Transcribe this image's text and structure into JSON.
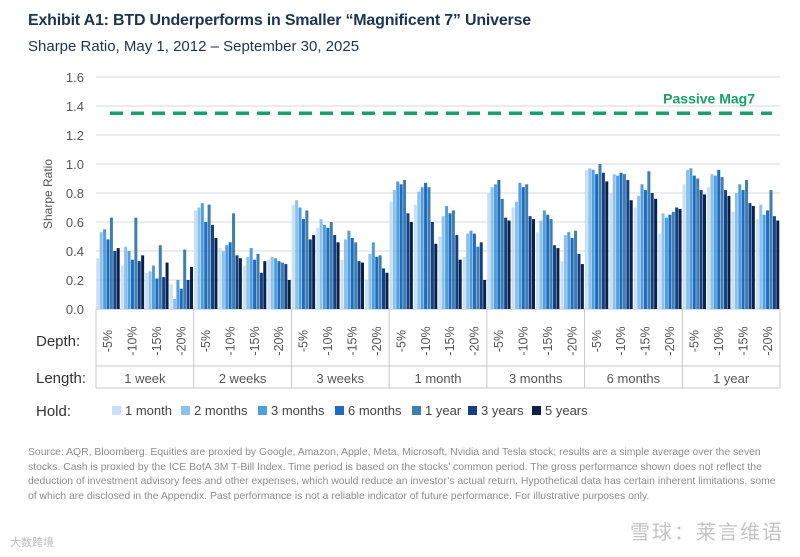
{
  "header": {
    "title": "Exhibit A1: BTD Underperforms in Smaller “Magnificent 7” Universe",
    "subtitle": "Sharpe Ratio, May 1, 2012 – September 30, 2025"
  },
  "chart_data": {
    "type": "bar",
    "ylabel": "Sharpe Ratio",
    "ylim": [
      0,
      1.6
    ],
    "yticks": [
      0.0,
      0.2,
      0.4,
      0.6,
      0.8,
      1.0,
      1.2,
      1.4,
      1.6
    ],
    "ytick_labels": [
      "0.0",
      "0.2",
      "0.4",
      "0.6",
      "0.8",
      "1.0",
      "1.2",
      "1.4",
      "1.6"
    ],
    "reference_line": {
      "label": "Passive Mag7",
      "value": 1.35,
      "color": "#17a06a"
    },
    "row_labels": {
      "depth": "Depth:",
      "length": "Length:",
      "hold": "Hold:"
    },
    "depths": [
      "-5%",
      "-10%",
      "-15%",
      "-20%"
    ],
    "lengths": [
      "1 week",
      "2 weeks",
      "3 weeks",
      "1 month",
      "3 months",
      "6 months",
      "1 year"
    ],
    "series": [
      {
        "name": "1 month",
        "color": "#c6e0f7"
      },
      {
        "name": "2 months",
        "color": "#8ec0ec"
      },
      {
        "name": "3 months",
        "color": "#4f9fe0"
      },
      {
        "name": "6 months",
        "color": "#1e6cc0"
      },
      {
        "name": "1 year",
        "color": "#3f7fae"
      },
      {
        "name": "3 years",
        "color": "#143f8a"
      },
      {
        "name": "5 years",
        "color": "#0b2248"
      }
    ],
    "groups": [
      {
        "length": "1 week",
        "depth": "-5%",
        "values": [
          0.35,
          0.53,
          0.55,
          0.48,
          0.63,
          0.4,
          0.42
        ]
      },
      {
        "length": "1 week",
        "depth": "-10%",
        "values": [
          0.3,
          0.43,
          0.4,
          0.34,
          0.63,
          0.33,
          0.37
        ]
      },
      {
        "length": "1 week",
        "depth": "-15%",
        "values": [
          0.25,
          0.26,
          0.3,
          0.21,
          0.44,
          0.22,
          0.32
        ]
      },
      {
        "length": "1 week",
        "depth": "-20%",
        "values": [
          0.17,
          0.07,
          0.2,
          0.14,
          0.41,
          0.2,
          0.29
        ]
      },
      {
        "length": "2 weeks",
        "depth": "-5%",
        "values": [
          0.68,
          0.7,
          0.73,
          0.6,
          0.72,
          0.58,
          0.49
        ]
      },
      {
        "length": "2 weeks",
        "depth": "-10%",
        "values": [
          0.42,
          0.4,
          0.44,
          0.46,
          0.66,
          0.37,
          0.35
        ]
      },
      {
        "length": "2 weeks",
        "depth": "-15%",
        "values": [
          0.3,
          0.36,
          0.42,
          0.34,
          0.38,
          0.25,
          0.33
        ]
      },
      {
        "length": "2 weeks",
        "depth": "-20%",
        "values": [
          0.34,
          0.36,
          0.35,
          0.33,
          0.32,
          0.31,
          0.2
        ]
      },
      {
        "length": "3 weeks",
        "depth": "-5%",
        "values": [
          0.72,
          0.75,
          0.7,
          0.62,
          0.68,
          0.48,
          0.51
        ]
      },
      {
        "length": "3 weeks",
        "depth": "-10%",
        "values": [
          0.56,
          0.62,
          0.58,
          0.56,
          0.6,
          0.51,
          0.46
        ]
      },
      {
        "length": "3 weeks",
        "depth": "-15%",
        "values": [
          0.34,
          0.48,
          0.54,
          0.49,
          0.46,
          0.33,
          0.32
        ]
      },
      {
        "length": "3 weeks",
        "depth": "-20%",
        "values": [
          0.2,
          0.38,
          0.46,
          0.36,
          0.37,
          0.28,
          0.25
        ]
      },
      {
        "length": "1 month",
        "depth": "-5%",
        "values": [
          0.74,
          0.82,
          0.88,
          0.86,
          0.89,
          0.66,
          0.6
        ]
      },
      {
        "length": "1 month",
        "depth": "-10%",
        "values": [
          0.72,
          0.81,
          0.84,
          0.87,
          0.84,
          0.6,
          0.45
        ]
      },
      {
        "length": "1 month",
        "depth": "-15%",
        "values": [
          0.5,
          0.64,
          0.71,
          0.66,
          0.68,
          0.51,
          0.34
        ]
      },
      {
        "length": "1 month",
        "depth": "-20%",
        "values": [
          0.36,
          0.52,
          0.54,
          0.52,
          0.43,
          0.46,
          0.2
        ]
      },
      {
        "length": "3 months",
        "depth": "-5%",
        "values": [
          0.8,
          0.84,
          0.86,
          0.89,
          0.76,
          0.63,
          0.61
        ]
      },
      {
        "length": "3 months",
        "depth": "-10%",
        "values": [
          0.7,
          0.74,
          0.87,
          0.84,
          0.86,
          0.64,
          0.62
        ]
      },
      {
        "length": "3 months",
        "depth": "-15%",
        "values": [
          0.53,
          0.61,
          0.68,
          0.65,
          0.62,
          0.44,
          0.42
        ]
      },
      {
        "length": "3 months",
        "depth": "-20%",
        "values": [
          0.33,
          0.51,
          0.53,
          0.49,
          0.54,
          0.38,
          0.31
        ]
      },
      {
        "length": "6 months",
        "depth": "-5%",
        "values": [
          0.96,
          0.97,
          0.96,
          0.93,
          1.0,
          0.94,
          0.88
        ]
      },
      {
        "length": "6 months",
        "depth": "-10%",
        "values": [
          0.8,
          0.93,
          0.92,
          0.94,
          0.93,
          0.89,
          0.75
        ]
      },
      {
        "length": "6 months",
        "depth": "-15%",
        "values": [
          0.7,
          0.78,
          0.86,
          0.82,
          0.95,
          0.8,
          0.76
        ]
      },
      {
        "length": "6 months",
        "depth": "-20%",
        "values": [
          0.52,
          0.66,
          0.63,
          0.65,
          0.67,
          0.7,
          0.69
        ]
      },
      {
        "length": "1 year",
        "depth": "-5%",
        "values": [
          0.86,
          0.96,
          0.97,
          0.92,
          0.9,
          0.82,
          0.79
        ]
      },
      {
        "length": "1 year",
        "depth": "-10%",
        "values": [
          0.84,
          0.93,
          0.92,
          0.96,
          0.91,
          0.82,
          0.78
        ]
      },
      {
        "length": "1 year",
        "depth": "-15%",
        "values": [
          0.67,
          0.8,
          0.86,
          0.82,
          0.89,
          0.73,
          0.71
        ]
      },
      {
        "length": "1 year",
        "depth": "-20%",
        "values": [
          0.62,
          0.72,
          0.65,
          0.68,
          0.82,
          0.64,
          0.61
        ]
      }
    ]
  },
  "footer": {
    "source": "Source: AQR, Bloomberg. Equities are proxied by Google, Amazon, Apple, Meta, Microsoft, Nvidia and Tesla stock; results are a simple average over the seven stocks. Cash is proxied by the ICE BofA 3M T-Bill Index. Time period is based on the stocks’ common period. The gross performance shown does not reflect the deduction of investment advisory fees and other expenses, which would reduce an investor’s actual return. Hypothetical data has certain inherent limitations, some of which are disclosed in the Appendix. Past performance is not a reliable indicator of future performance. For illustrative purposes only.",
    "watermark_left": "大数跨境",
    "watermark_right": "雪球：莱言维语"
  }
}
